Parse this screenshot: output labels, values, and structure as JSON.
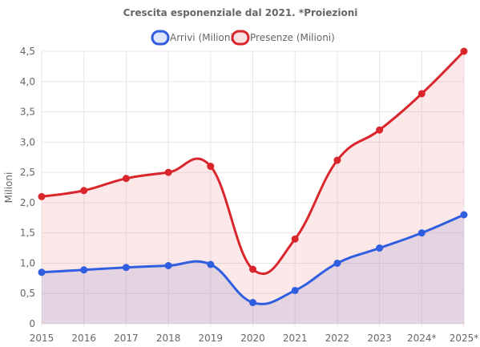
{
  "chart_data": {
    "type": "line",
    "title": "Crescita esponenziale dal 2021. *Proiezioni",
    "xlabel": "",
    "ylabel": "Milioni",
    "ylim": [
      0,
      4.5
    ],
    "yticks": [
      "0",
      "0,5",
      "1,0",
      "1,5",
      "2,0",
      "2,5",
      "3,0",
      "3,5",
      "4,0",
      "4,5"
    ],
    "ytick_values": [
      0,
      0.5,
      1.0,
      1.5,
      2.0,
      2.5,
      3.0,
      3.5,
      4.0,
      4.5
    ],
    "categories": [
      "2015",
      "2016",
      "2017",
      "2018",
      "2019",
      "2020",
      "2021",
      "2022",
      "2023",
      "2024*",
      "2025*"
    ],
    "grid": true,
    "legend_position": "top",
    "series": [
      {
        "name": "Arrivi (Milioni)",
        "values": [
          0.85,
          0.89,
          0.93,
          0.96,
          0.98,
          0.35,
          0.55,
          1.0,
          1.25,
          1.5,
          1.8
        ],
        "color": "#2f5fe0",
        "fill": "rgba(120,130,220,0.22)"
      },
      {
        "name": "Presenze (Milioni)",
        "values": [
          2.1,
          2.2,
          2.4,
          2.5,
          2.6,
          0.9,
          1.4,
          2.7,
          3.2,
          3.8,
          4.5
        ],
        "color": "#d9262c",
        "fill": "rgba(240,150,150,0.22)"
      }
    ]
  }
}
